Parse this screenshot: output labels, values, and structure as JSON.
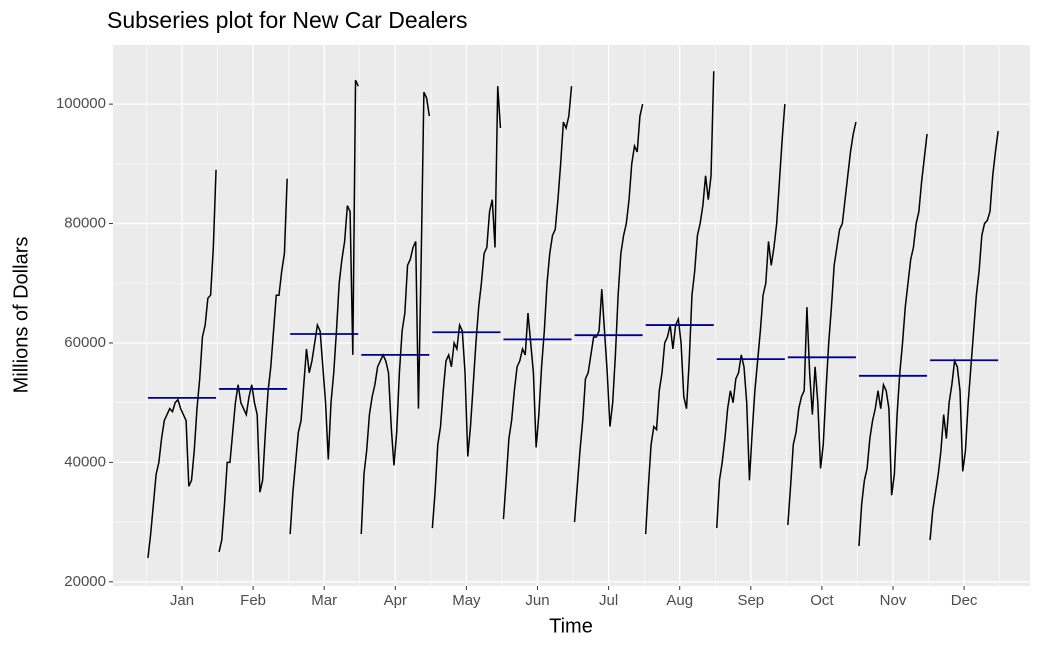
{
  "chart_data": {
    "type": "subseries",
    "title": "Subseries plot for New Car Dealers",
    "x_label": "Time",
    "y_label": "Millions of Dollars",
    "line_color": "#000000",
    "mean_color": "#00008b",
    "grid": true,
    "ylim": [
      19300,
      109900
    ],
    "yticks": [
      20000,
      40000,
      60000,
      80000,
      100000
    ],
    "series": [
      {
        "name": "Jan",
        "mean": 50800,
        "values": [
          24000,
          28000,
          33000,
          38000,
          40000,
          44000,
          47000,
          48000,
          49000,
          48500,
          50000,
          50500,
          49000,
          48000,
          47000,
          36000,
          37000,
          42000,
          49000,
          54000,
          61000,
          63000,
          67500,
          68000,
          76000,
          89000
        ]
      },
      {
        "name": "Feb",
        "mean": 52300,
        "values": [
          25000,
          27000,
          33000,
          40000,
          40000,
          45000,
          50000,
          53000,
          50000,
          49000,
          48000,
          51000,
          53000,
          50000,
          48000,
          35000,
          37000,
          45000,
          52000,
          56000,
          62000,
          68000,
          68000,
          72000,
          75000,
          87500
        ]
      },
      {
        "name": "Mar",
        "mean": 61500,
        "values": [
          28000,
          35000,
          40000,
          45000,
          47000,
          53000,
          59000,
          55000,
          57000,
          60000,
          63000,
          62000,
          56000,
          50000,
          40500,
          50000,
          55000,
          62000,
          70000,
          74000,
          77000,
          83000,
          82000,
          58000,
          104000,
          103000
        ]
      },
      {
        "name": "Apr",
        "mean": 58000,
        "values": [
          28000,
          38000,
          42000,
          48000,
          51000,
          53000,
          56000,
          57000,
          58000,
          57000,
          55000,
          46000,
          39500,
          45000,
          55000,
          62000,
          65000,
          73000,
          74000,
          76000,
          77000,
          49000,
          74000,
          102000,
          101000,
          98000
        ]
      },
      {
        "name": "May",
        "mean": 61800,
        "values": [
          29000,
          35000,
          43000,
          46000,
          52000,
          57000,
          58000,
          56000,
          60000,
          59000,
          63000,
          62000,
          55000,
          41000,
          46000,
          53000,
          60000,
          66000,
          70000,
          75000,
          76000,
          82000,
          84000,
          76000,
          103000,
          96000
        ]
      },
      {
        "name": "Jun",
        "mean": 60600,
        "values": [
          30500,
          37000,
          44000,
          47000,
          52000,
          56000,
          57000,
          59000,
          58000,
          65000,
          60000,
          55000,
          42500,
          48000,
          56000,
          62000,
          70000,
          75000,
          78000,
          79000,
          84000,
          90000,
          97000,
          96000,
          98000,
          103000
        ]
      },
      {
        "name": "Jul",
        "mean": 61300,
        "values": [
          30000,
          36000,
          42000,
          47000,
          54000,
          55000,
          58000,
          61000,
          61000,
          62000,
          69000,
          62000,
          55000,
          46000,
          50000,
          58000,
          68000,
          75000,
          78000,
          80000,
          84000,
          90000,
          93000,
          92000,
          98000,
          100000
        ]
      },
      {
        "name": "Aug",
        "mean": 63000,
        "values": [
          28000,
          36000,
          43000,
          46000,
          45500,
          52000,
          55000,
          60000,
          61000,
          63000,
          59000,
          63000,
          64000,
          60000,
          51000,
          49000,
          57000,
          68000,
          72000,
          78000,
          80000,
          83000,
          88000,
          84000,
          88000,
          105500
        ]
      },
      {
        "name": "Sep",
        "mean": 57300,
        "values": [
          29000,
          37000,
          40000,
          44000,
          49000,
          52000,
          50000,
          54000,
          55000,
          58000,
          56000,
          50000,
          37000,
          45000,
          52000,
          57000,
          62000,
          68000,
          70000,
          77000,
          73000,
          76000,
          80000,
          87000,
          94000,
          100000
        ]
      },
      {
        "name": "Oct",
        "mean": 57600,
        "values": [
          29500,
          36000,
          43000,
          45000,
          49000,
          51000,
          52000,
          66000,
          55000,
          48000,
          56000,
          50000,
          39000,
          43000,
          52000,
          60000,
          66000,
          73000,
          76000,
          79000,
          80000,
          84000,
          88000,
          92000,
          95000,
          97000
        ]
      },
      {
        "name": "Nov",
        "mean": 54500,
        "values": [
          26000,
          33000,
          37000,
          39000,
          44000,
          47000,
          49000,
          52000,
          49000,
          53000,
          52000,
          49000,
          34500,
          38000,
          48000,
          55000,
          60000,
          66000,
          70000,
          74000,
          76000,
          80000,
          82000,
          87000,
          91000,
          95000
        ]
      },
      {
        "name": "Dec",
        "mean": 57100,
        "values": [
          27000,
          32000,
          35000,
          38000,
          42000,
          48000,
          44000,
          50000,
          53000,
          57000,
          56000,
          52000,
          38500,
          42000,
          50000,
          56000,
          62000,
          68000,
          72000,
          78000,
          80000,
          80500,
          82000,
          88000,
          92000,
          95500
        ]
      }
    ]
  }
}
